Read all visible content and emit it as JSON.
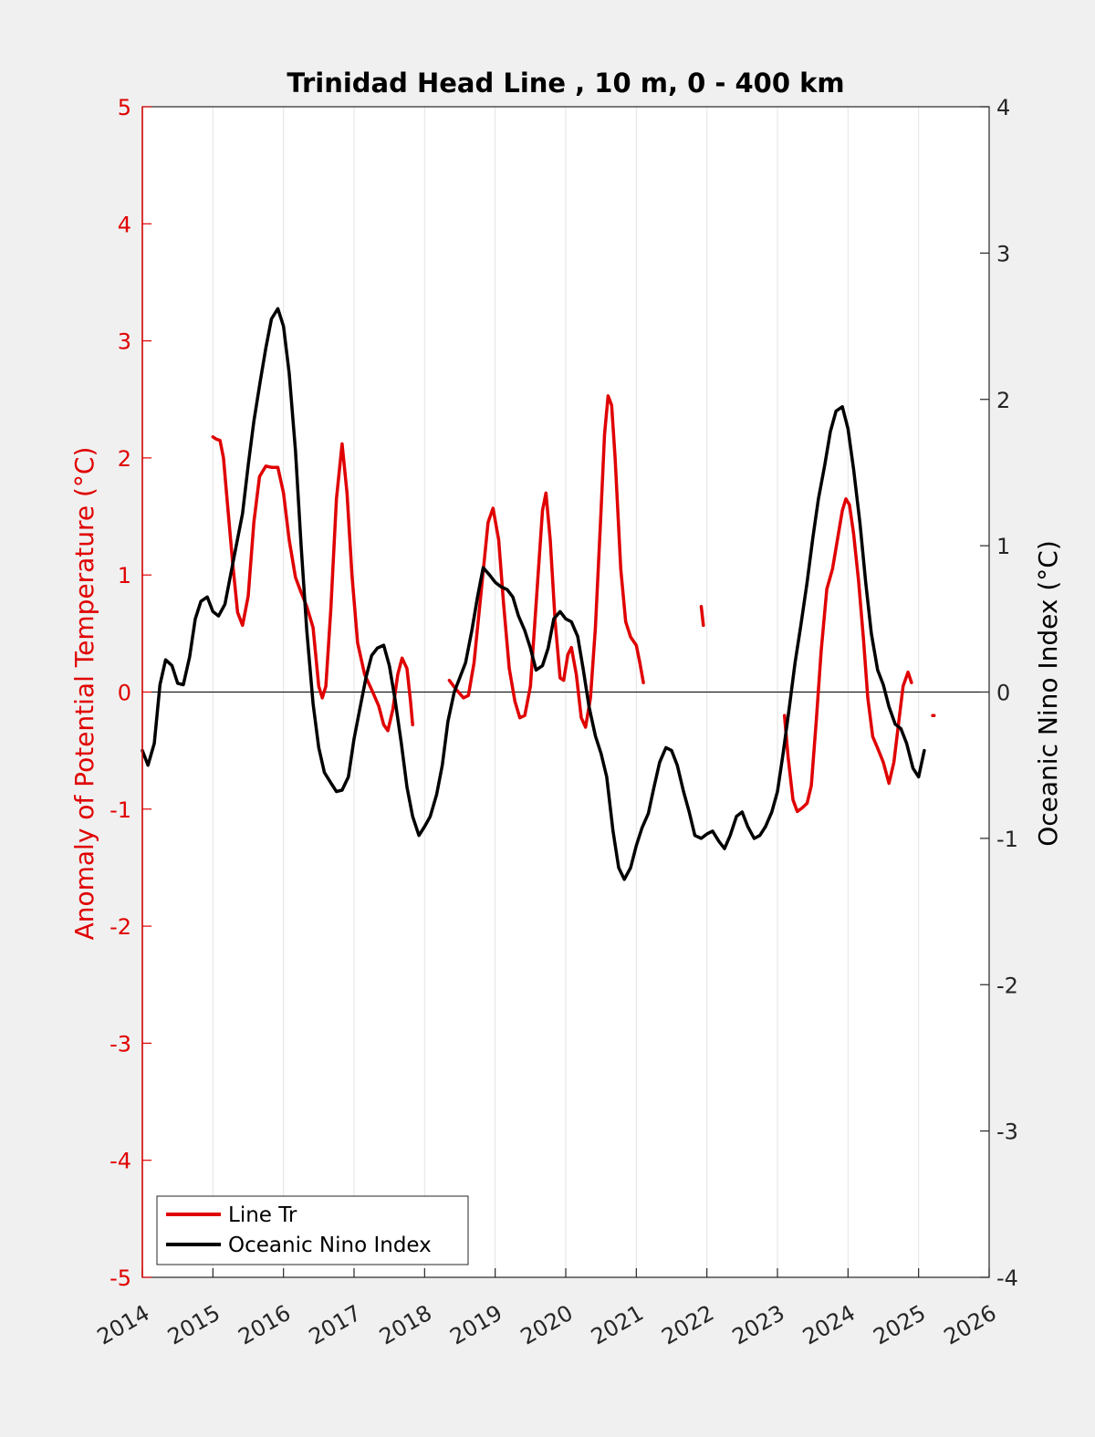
{
  "chart_data": {
    "type": "line",
    "title": "Trinidad Head Line , 10 m, 0 - 400 km",
    "xlabel": "",
    "ylabel": "Anomaly of Potential Temperature (°C)",
    "y2label": "Oceanic Nino Index (°C)",
    "xlim": [
      2014,
      2026
    ],
    "ylim": [
      -5,
      5
    ],
    "y2lim": [
      -4,
      4
    ],
    "x_ticks": [
      "2014",
      "2015",
      "2016",
      "2017",
      "2018",
      "2019",
      "2020",
      "2021",
      "2022",
      "2023",
      "2024",
      "2025",
      "2026"
    ],
    "y_ticks": [
      "-5",
      "-4",
      "-3",
      "-2",
      "-1",
      "0",
      "1",
      "2",
      "3",
      "4",
      "5"
    ],
    "y2_ticks": [
      "-4",
      "-3",
      "-2",
      "-1",
      "0",
      "1",
      "2",
      "3",
      "4"
    ],
    "grid": "vertical",
    "legend_position": "bottom-left",
    "colors": {
      "line_tr": "#e00000",
      "oni": "#000000",
      "left_axis": "#e00000"
    },
    "series": [
      {
        "name": "Line Tr",
        "axis": "left",
        "color": "#e00000",
        "segments": [
          [
            [
              2015.0,
              2.18
            ],
            [
              2015.05,
              2.16
            ],
            [
              2015.1,
              2.15
            ],
            [
              2015.15,
              2.0
            ],
            [
              2015.2,
              1.65
            ],
            [
              2015.28,
              1.1
            ],
            [
              2015.35,
              0.68
            ],
            [
              2015.42,
              0.57
            ],
            [
              2015.5,
              0.82
            ],
            [
              2015.58,
              1.45
            ],
            [
              2015.66,
              1.84
            ],
            [
              2015.75,
              1.93
            ],
            [
              2015.83,
              1.92
            ],
            [
              2015.92,
              1.92
            ],
            [
              2016.0,
              1.7
            ],
            [
              2016.08,
              1.3
            ],
            [
              2016.17,
              0.98
            ],
            [
              2016.25,
              0.85
            ],
            [
              2016.33,
              0.73
            ],
            [
              2016.42,
              0.55
            ],
            [
              2016.5,
              0.05
            ],
            [
              2016.55,
              -0.05
            ],
            [
              2016.6,
              0.05
            ],
            [
              2016.67,
              0.7
            ],
            [
              2016.75,
              1.65
            ],
            [
              2016.83,
              2.12
            ],
            [
              2016.9,
              1.7
            ],
            [
              2016.97,
              1.0
            ],
            [
              2017.05,
              0.42
            ],
            [
              2017.15,
              0.15
            ],
            [
              2017.25,
              0.02
            ],
            [
              2017.35,
              -0.12
            ],
            [
              2017.42,
              -0.28
            ],
            [
              2017.48,
              -0.33
            ],
            [
              2017.55,
              -0.15
            ],
            [
              2017.62,
              0.15
            ],
            [
              2017.68,
              0.29
            ],
            [
              2017.75,
              0.2
            ],
            [
              2017.8,
              -0.08
            ],
            [
              2017.83,
              -0.28
            ]
          ],
          [
            [
              2018.35,
              0.1
            ],
            [
              2018.45,
              0.02
            ],
            [
              2018.55,
              -0.05
            ],
            [
              2018.62,
              -0.03
            ],
            [
              2018.7,
              0.25
            ],
            [
              2018.8,
              0.85
            ],
            [
              2018.9,
              1.45
            ],
            [
              2018.97,
              1.57
            ],
            [
              2019.05,
              1.3
            ],
            [
              2019.12,
              0.75
            ],
            [
              2019.2,
              0.2
            ],
            [
              2019.28,
              -0.08
            ],
            [
              2019.35,
              -0.22
            ],
            [
              2019.42,
              -0.2
            ],
            [
              2019.5,
              0.05
            ],
            [
              2019.58,
              0.75
            ],
            [
              2019.67,
              1.55
            ],
            [
              2019.72,
              1.7
            ],
            [
              2019.78,
              1.3
            ],
            [
              2019.85,
              0.6
            ],
            [
              2019.92,
              0.12
            ],
            [
              2019.97,
              0.1
            ],
            [
              2020.03,
              0.32
            ],
            [
              2020.08,
              0.38
            ],
            [
              2020.15,
              0.15
            ],
            [
              2020.22,
              -0.22
            ],
            [
              2020.28,
              -0.3
            ],
            [
              2020.35,
              -0.05
            ],
            [
              2020.42,
              0.55
            ],
            [
              2020.5,
              1.55
            ],
            [
              2020.55,
              2.2
            ],
            [
              2020.6,
              2.53
            ],
            [
              2020.65,
              2.45
            ],
            [
              2020.7,
              2.0
            ],
            [
              2020.78,
              1.05
            ],
            [
              2020.85,
              0.6
            ],
            [
              2020.92,
              0.47
            ],
            [
              2021.0,
              0.4
            ],
            [
              2021.05,
              0.25
            ],
            [
              2021.1,
              0.08
            ]
          ],
          [
            [
              2021.92,
              0.73
            ],
            [
              2021.95,
              0.57
            ]
          ],
          [
            [
              2023.1,
              -0.2
            ],
            [
              2023.15,
              -0.55
            ],
            [
              2023.22,
              -0.92
            ],
            [
              2023.28,
              -1.02
            ],
            [
              2023.35,
              -0.99
            ],
            [
              2023.42,
              -0.95
            ],
            [
              2023.48,
              -0.8
            ],
            [
              2023.55,
              -0.25
            ],
            [
              2023.62,
              0.35
            ],
            [
              2023.7,
              0.88
            ],
            [
              2023.78,
              1.05
            ],
            [
              2023.85,
              1.3
            ],
            [
              2023.92,
              1.55
            ],
            [
              2023.97,
              1.65
            ],
            [
              2024.02,
              1.6
            ],
            [
              2024.08,
              1.35
            ],
            [
              2024.15,
              0.95
            ],
            [
              2024.22,
              0.45
            ],
            [
              2024.28,
              -0.05
            ],
            [
              2024.35,
              -0.38
            ],
            [
              2024.42,
              -0.48
            ],
            [
              2024.5,
              -0.6
            ],
            [
              2024.58,
              -0.78
            ],
            [
              2024.65,
              -0.6
            ],
            [
              2024.72,
              -0.25
            ],
            [
              2024.78,
              0.05
            ],
            [
              2024.85,
              0.17
            ],
            [
              2024.9,
              0.08
            ]
          ],
          [
            [
              2025.2,
              -0.2
            ],
            [
              2025.22,
              -0.2
            ]
          ]
        ]
      },
      {
        "name": "Oceanic Nino Index",
        "axis": "right",
        "color": "#000000",
        "values": [
          [
            2014.0,
            -0.4
          ],
          [
            2014.08,
            -0.5
          ],
          [
            2014.17,
            -0.35
          ],
          [
            2014.25,
            0.05
          ],
          [
            2014.33,
            0.22
          ],
          [
            2014.42,
            0.18
          ],
          [
            2014.5,
            0.06
          ],
          [
            2014.58,
            0.05
          ],
          [
            2014.67,
            0.24
          ],
          [
            2014.75,
            0.5
          ],
          [
            2014.83,
            0.62
          ],
          [
            2014.92,
            0.65
          ],
          [
            2015.0,
            0.55
          ],
          [
            2015.08,
            0.52
          ],
          [
            2015.17,
            0.6
          ],
          [
            2015.25,
            0.8
          ],
          [
            2015.33,
            1.0
          ],
          [
            2015.42,
            1.22
          ],
          [
            2015.5,
            1.55
          ],
          [
            2015.58,
            1.85
          ],
          [
            2015.67,
            2.12
          ],
          [
            2015.75,
            2.35
          ],
          [
            2015.83,
            2.55
          ],
          [
            2015.92,
            2.62
          ],
          [
            2016.0,
            2.5
          ],
          [
            2016.08,
            2.18
          ],
          [
            2016.17,
            1.65
          ],
          [
            2016.25,
            1.0
          ],
          [
            2016.33,
            0.42
          ],
          [
            2016.42,
            -0.08
          ],
          [
            2016.5,
            -0.38
          ],
          [
            2016.58,
            -0.55
          ],
          [
            2016.67,
            -0.62
          ],
          [
            2016.75,
            -0.68
          ],
          [
            2016.83,
            -0.67
          ],
          [
            2016.92,
            -0.58
          ],
          [
            2017.0,
            -0.32
          ],
          [
            2017.08,
            -0.12
          ],
          [
            2017.17,
            0.1
          ],
          [
            2017.25,
            0.25
          ],
          [
            2017.33,
            0.3
          ],
          [
            2017.42,
            0.32
          ],
          [
            2017.5,
            0.18
          ],
          [
            2017.58,
            -0.05
          ],
          [
            2017.67,
            -0.35
          ],
          [
            2017.75,
            -0.65
          ],
          [
            2017.83,
            -0.85
          ],
          [
            2017.92,
            -0.98
          ],
          [
            2018.0,
            -0.92
          ],
          [
            2018.08,
            -0.85
          ],
          [
            2018.17,
            -0.7
          ],
          [
            2018.25,
            -0.5
          ],
          [
            2018.33,
            -0.2
          ],
          [
            2018.42,
            0.0
          ],
          [
            2018.5,
            0.1
          ],
          [
            2018.58,
            0.2
          ],
          [
            2018.67,
            0.42
          ],
          [
            2018.75,
            0.65
          ],
          [
            2018.83,
            0.85
          ],
          [
            2018.92,
            0.8
          ],
          [
            2019.0,
            0.75
          ],
          [
            2019.08,
            0.72
          ],
          [
            2019.17,
            0.7
          ],
          [
            2019.25,
            0.65
          ],
          [
            2019.33,
            0.52
          ],
          [
            2019.42,
            0.42
          ],
          [
            2019.5,
            0.3
          ],
          [
            2019.58,
            0.15
          ],
          [
            2019.67,
            0.18
          ],
          [
            2019.75,
            0.3
          ],
          [
            2019.83,
            0.5
          ],
          [
            2019.92,
            0.55
          ],
          [
            2020.0,
            0.5
          ],
          [
            2020.08,
            0.48
          ],
          [
            2020.17,
            0.38
          ],
          [
            2020.25,
            0.15
          ],
          [
            2020.33,
            -0.1
          ],
          [
            2020.42,
            -0.3
          ],
          [
            2020.5,
            -0.42
          ],
          [
            2020.58,
            -0.58
          ],
          [
            2020.67,
            -0.95
          ],
          [
            2020.75,
            -1.2
          ],
          [
            2020.83,
            -1.28
          ],
          [
            2020.92,
            -1.2
          ],
          [
            2021.0,
            -1.05
          ],
          [
            2021.08,
            -0.93
          ],
          [
            2021.17,
            -0.83
          ],
          [
            2021.25,
            -0.65
          ],
          [
            2021.33,
            -0.48
          ],
          [
            2021.42,
            -0.38
          ],
          [
            2021.5,
            -0.4
          ],
          [
            2021.58,
            -0.5
          ],
          [
            2021.67,
            -0.68
          ],
          [
            2021.75,
            -0.82
          ],
          [
            2021.83,
            -0.98
          ],
          [
            2021.92,
            -1.0
          ],
          [
            2022.0,
            -0.97
          ],
          [
            2022.08,
            -0.95
          ],
          [
            2022.17,
            -1.02
          ],
          [
            2022.25,
            -1.07
          ],
          [
            2022.33,
            -0.98
          ],
          [
            2022.42,
            -0.85
          ],
          [
            2022.5,
            -0.82
          ],
          [
            2022.58,
            -0.92
          ],
          [
            2022.67,
            -1.0
          ],
          [
            2022.75,
            -0.98
          ],
          [
            2022.83,
            -0.92
          ],
          [
            2022.92,
            -0.82
          ],
          [
            2023.0,
            -0.68
          ],
          [
            2023.08,
            -0.42
          ],
          [
            2023.17,
            -0.1
          ],
          [
            2023.25,
            0.2
          ],
          [
            2023.33,
            0.45
          ],
          [
            2023.42,
            0.75
          ],
          [
            2023.5,
            1.05
          ],
          [
            2023.58,
            1.32
          ],
          [
            2023.67,
            1.55
          ],
          [
            2023.75,
            1.78
          ],
          [
            2023.83,
            1.92
          ],
          [
            2023.92,
            1.95
          ],
          [
            2024.0,
            1.8
          ],
          [
            2024.08,
            1.52
          ],
          [
            2024.17,
            1.15
          ],
          [
            2024.25,
            0.75
          ],
          [
            2024.33,
            0.4
          ],
          [
            2024.42,
            0.15
          ],
          [
            2024.5,
            0.05
          ],
          [
            2024.58,
            -0.1
          ],
          [
            2024.67,
            -0.22
          ],
          [
            2024.75,
            -0.25
          ],
          [
            2024.83,
            -0.35
          ],
          [
            2024.92,
            -0.52
          ],
          [
            2025.0,
            -0.58
          ],
          [
            2025.08,
            -0.4
          ]
        ]
      }
    ]
  }
}
